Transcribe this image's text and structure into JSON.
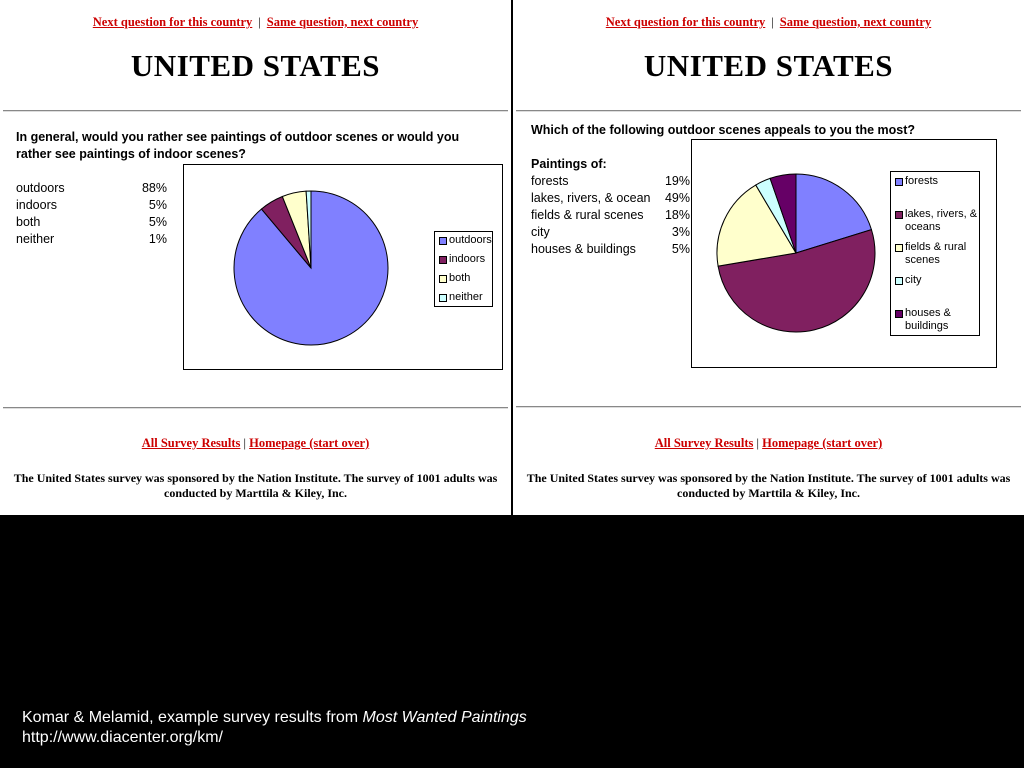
{
  "nav": {
    "next_question": "Next question for this country",
    "separator": "|",
    "same_question": "Same question, next country"
  },
  "country": "UNITED STATES",
  "footer_nav": {
    "all_results": "All Survey Results",
    "separator": "|",
    "homepage": "Homepage (start over)"
  },
  "sponsor_text": "The United States survey was sponsored by the Nation Institute. The survey of 1001 adults was conducted by Marttila & Kiley, Inc.",
  "caption": {
    "line1_plain": "Komar & Melamid, example survey results from ",
    "line1_italic": "Most Wanted Paintings",
    "line2": "http://www.diacenter.org/km/"
  },
  "left": {
    "question": "In general, would you rather see paintings of outdoor scenes or would you rather see paintings of indoor scenes?",
    "rows": [
      {
        "label": "outdoors",
        "pct": "88%"
      },
      {
        "label": "indoors",
        "pct": "5%"
      },
      {
        "label": "both",
        "pct": "5%"
      },
      {
        "label": "neither",
        "pct": "1%"
      }
    ]
  },
  "right": {
    "question": "Which of the following outdoor scenes appeals to you the most?",
    "rows_title": "Paintings of:",
    "rows": [
      {
        "label": "forests",
        "pct": "19%"
      },
      {
        "label": "lakes, rivers, & ocean",
        "pct": "49%"
      },
      {
        "label": "fields & rural scenes",
        "pct": "18%"
      },
      {
        "label": "city",
        "pct": "3%"
      },
      {
        "label": "houses & buildings",
        "pct": "5%"
      }
    ]
  },
  "chart_data": [
    {
      "type": "pie",
      "title": "",
      "categories": [
        "outdoors",
        "indoors",
        "both",
        "neither"
      ],
      "values": [
        88,
        5,
        5,
        1
      ],
      "colors": [
        "#8080ff",
        "#802060",
        "#ffffcc",
        "#ccffff"
      ],
      "legend": [
        "outdoors",
        "indoors",
        "both",
        "neither"
      ],
      "legend_position": "right"
    },
    {
      "type": "pie",
      "title": "",
      "categories": [
        "forests",
        "lakes, rivers, & oceans",
        "fields & rural scenes",
        "city",
        "houses & buildings"
      ],
      "values": [
        19,
        49,
        18,
        3,
        5
      ],
      "colors": [
        "#8080ff",
        "#802060",
        "#ffffcc",
        "#ccffff",
        "#660066"
      ],
      "legend": [
        [
          "forests"
        ],
        [
          "lakes, rivers, &",
          "oceans"
        ],
        [
          "fields & rural",
          "scenes"
        ],
        [
          "city"
        ],
        [
          "houses &",
          "buildings"
        ]
      ],
      "legend_position": "right"
    }
  ]
}
